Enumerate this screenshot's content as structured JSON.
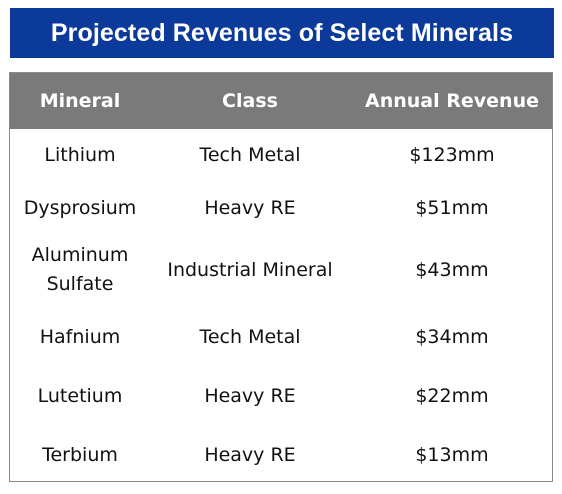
{
  "chart_data": {
    "type": "table",
    "title": "Projected Revenues of Select Minerals",
    "columns": [
      "Mineral",
      "Class",
      "Annual Revenue"
    ],
    "rows": [
      [
        "Lithium",
        "Tech Metal",
        "$123mm"
      ],
      [
        "Dysprosium",
        "Heavy RE",
        "$51mm"
      ],
      [
        "Aluminum Sulfate",
        "Industrial Mineral",
        "$43mm"
      ],
      [
        "Hafnium",
        "Tech Metal",
        "$34mm"
      ],
      [
        "Lutetium",
        "Heavy RE",
        "$22mm"
      ],
      [
        "Terbium",
        "Heavy RE",
        "$13mm"
      ]
    ],
    "annual_revenue_mm": [
      123,
      51,
      43,
      34,
      22,
      13
    ]
  },
  "colors": {
    "title_background": "#0b3a9a",
    "header_background": "#7a7a7a",
    "header_text": "#ffffff"
  }
}
